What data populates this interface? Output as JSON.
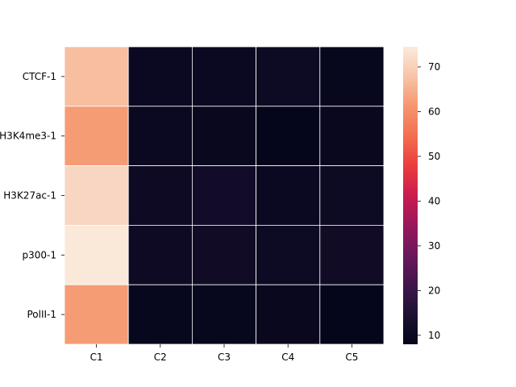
{
  "chart_data": {
    "type": "heatmap",
    "title": "",
    "xlabel": "",
    "ylabel": "",
    "x_categories": [
      "C1",
      "C2",
      "C3",
      "C4",
      "C5"
    ],
    "y_categories": [
      "CTCF-1",
      "H3K4me3-1",
      "H3K27ac-1",
      "p300-1",
      "PolII-1"
    ],
    "values": [
      [
        67,
        10,
        10,
        10.5,
        9
      ],
      [
        62,
        10,
        9.5,
        8.5,
        9.5
      ],
      [
        71,
        11,
        12,
        10,
        10.5
      ],
      [
        74,
        11,
        11.5,
        10.5,
        11.5
      ],
      [
        62,
        9,
        9,
        9.5,
        8.5
      ]
    ],
    "colorbar": {
      "range": [
        8,
        74.5
      ],
      "ticks": [
        10,
        20,
        30,
        40,
        50,
        60,
        70
      ],
      "colormap": "rocket"
    },
    "grid_lines": true,
    "grid_line_color": "#ffffff"
  }
}
